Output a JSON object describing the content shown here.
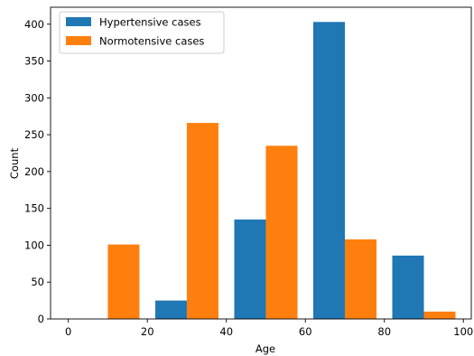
{
  "chart_data": {
    "type": "bar",
    "title": "",
    "xlabel": "Age",
    "ylabel": "Count",
    "xlim": [
      -4.5,
      102
    ],
    "ylim": [
      0,
      423
    ],
    "xticks": [
      0,
      20,
      40,
      60,
      80,
      100
    ],
    "yticks": [
      0,
      50,
      100,
      150,
      200,
      250,
      300,
      350,
      400
    ],
    "bin_edges": [
      0,
      20,
      40,
      60,
      80,
      100
    ],
    "legend_position": "top-left",
    "grid": false,
    "series": [
      {
        "name": "Hypertensive cases",
        "color": "#1f77b4",
        "values": [
          0,
          25,
          135,
          403,
          86
        ]
      },
      {
        "name": "Normotensive cases",
        "color": "#ff7f0e",
        "values": [
          101,
          266,
          235,
          108,
          10
        ]
      }
    ]
  }
}
